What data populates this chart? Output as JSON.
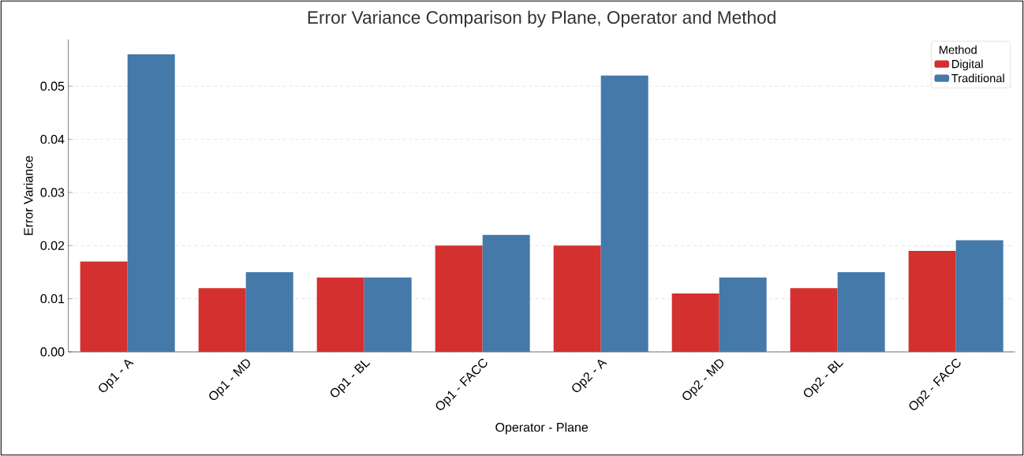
{
  "chart_data": {
    "type": "bar",
    "title": "Error Variance Comparison by Plane, Operator and Method",
    "xlabel": "Operator - Plane",
    "ylabel": "Error Variance",
    "legend_title": "Method",
    "categories": [
      "Op1 - A",
      "Op1 - MD",
      "Op1 - BL",
      "Op1 - FACC",
      "Op2 - A",
      "Op2 - MD",
      "Op2 - BL",
      "Op2 - FACC"
    ],
    "series": [
      {
        "name": "Digital",
        "color": "#d3302f",
        "values": [
          0.017,
          0.012,
          0.014,
          0.02,
          0.02,
          0.011,
          0.012,
          0.019
        ]
      },
      {
        "name": "Traditional",
        "color": "#4479aa",
        "values": [
          0.056,
          0.015,
          0.014,
          0.022,
          0.052,
          0.014,
          0.015,
          0.021
        ]
      }
    ],
    "ylim": [
      0,
      0.0588
    ],
    "yticks": [
      {
        "value": 0,
        "label": "0.00"
      },
      {
        "value": 0.01,
        "label": "0.01"
      },
      {
        "value": 0.02,
        "label": "0.02"
      },
      {
        "value": 0.03,
        "label": "0.03"
      },
      {
        "value": 0.04,
        "label": "0.04"
      },
      {
        "value": 0.05,
        "label": "0.05"
      }
    ],
    "grid": "y",
    "legend": "top right"
  }
}
